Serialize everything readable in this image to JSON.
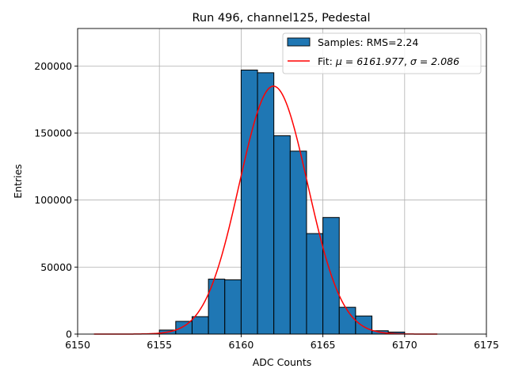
{
  "chart_data": {
    "type": "bar",
    "title": "Run 496, channel125, Pedestal",
    "xlabel": "ADC Counts",
    "ylabel": "Entries",
    "xlim": [
      6150,
      6175
    ],
    "ylim": [
      0,
      228000
    ],
    "xticks": [
      6150,
      6155,
      6160,
      6165,
      6170,
      6175
    ],
    "yticks": [
      0,
      50000,
      100000,
      150000,
      200000
    ],
    "grid": true,
    "legend_position": "top-right",
    "histogram": {
      "name": "Samples: RMS=2.24",
      "color": "#1f77b4",
      "bin_edges": [
        6155,
        6156,
        6157,
        6158,
        6159,
        6160,
        6161,
        6162,
        6163,
        6164,
        6165,
        6166,
        6167,
        6168,
        6169,
        6170
      ],
      "counts": [
        3000,
        9500,
        13000,
        41000,
        40500,
        197000,
        195000,
        148000,
        136500,
        75000,
        87000,
        20000,
        13500,
        2500,
        1500
      ]
    },
    "fit": {
      "name_prefix": "Fit: ",
      "name_mu_label": "μ = 6161.977",
      "name_sigma_label": "σ = 2.086",
      "color": "#ff0000",
      "mu": 6161.977,
      "sigma": 2.086,
      "amplitude": 185000,
      "x_range": [
        6151,
        6172
      ]
    }
  }
}
